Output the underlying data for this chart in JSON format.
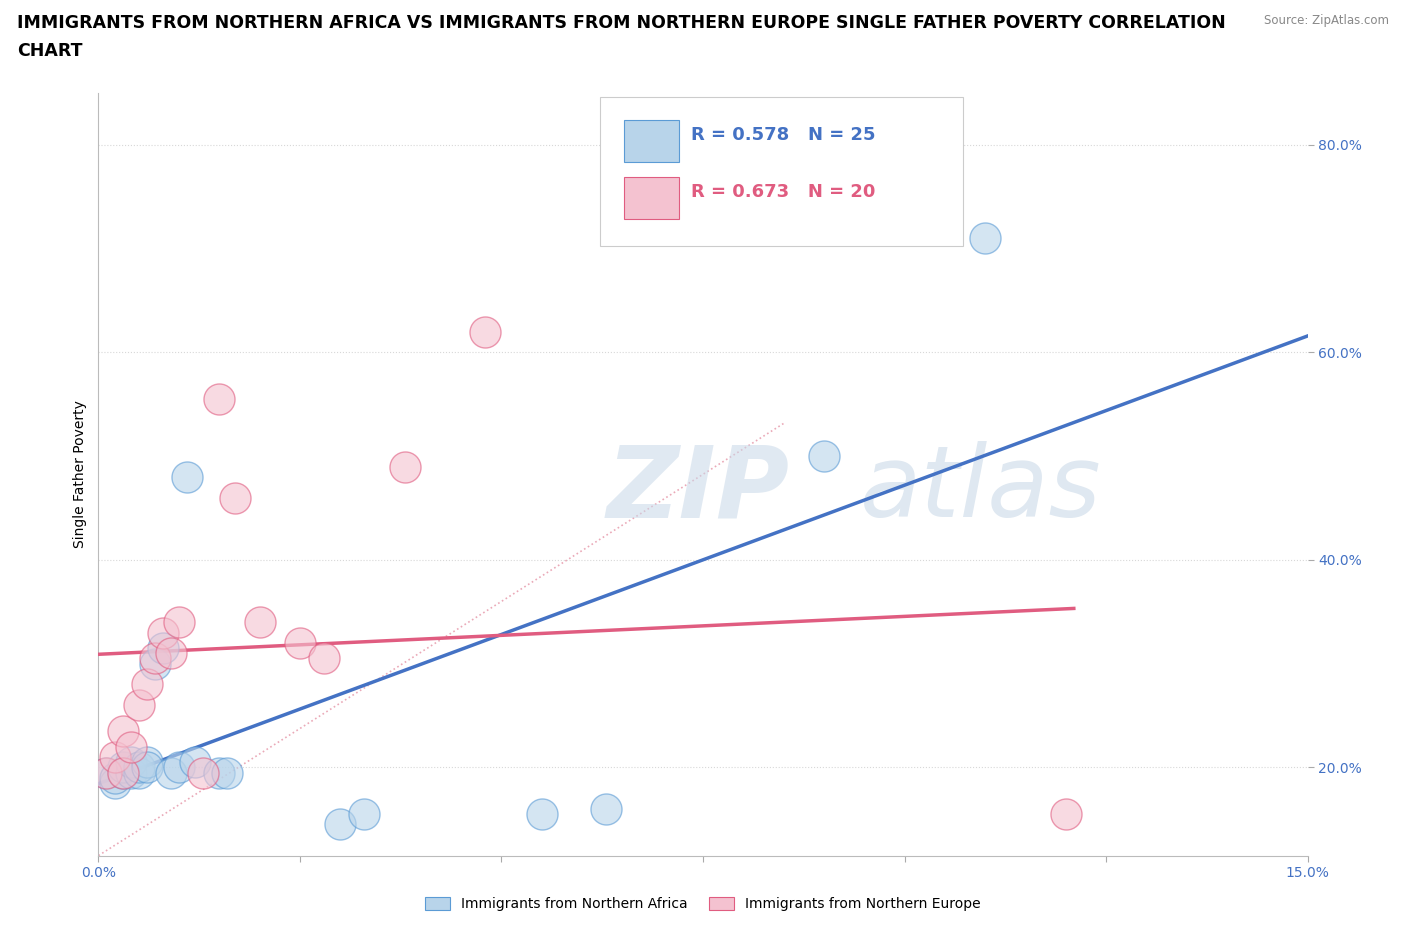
{
  "title_line1": "IMMIGRANTS FROM NORTHERN AFRICA VS IMMIGRANTS FROM NORTHERN EUROPE SINGLE FATHER POVERTY CORRELATION",
  "title_line2": "CHART",
  "source": "Source: ZipAtlas.com",
  "ylabel": "Single Father Poverty",
  "xlim": [
    0.0,
    0.15
  ],
  "ylim": [
    0.115,
    0.85
  ],
  "yticks": [
    0.2,
    0.4,
    0.6,
    0.8
  ],
  "ytick_labels": [
    "20.0%",
    "40.0%",
    "60.0%",
    "80.0%"
  ],
  "xtick_positions": [
    0.0,
    0.025,
    0.05,
    0.075,
    0.1,
    0.125,
    0.15
  ],
  "watermark_zip": "ZIP",
  "watermark_atlas": "atlas",
  "series_blue": {
    "label": "Immigrants from Northern Africa",
    "R": 0.578,
    "N": 25,
    "color": "#b8d4ea",
    "edge_color": "#5b9bd5",
    "x": [
      0.001,
      0.002,
      0.002,
      0.003,
      0.003,
      0.004,
      0.004,
      0.005,
      0.005,
      0.006,
      0.006,
      0.007,
      0.008,
      0.009,
      0.01,
      0.011,
      0.012,
      0.015,
      0.016,
      0.03,
      0.033,
      0.055,
      0.063,
      0.09,
      0.11
    ],
    "y": [
      0.195,
      0.185,
      0.19,
      0.195,
      0.2,
      0.195,
      0.205,
      0.195,
      0.2,
      0.205,
      0.2,
      0.3,
      0.315,
      0.195,
      0.2,
      0.48,
      0.205,
      0.195,
      0.195,
      0.145,
      0.155,
      0.155,
      0.16,
      0.5,
      0.71
    ]
  },
  "series_pink": {
    "label": "Immigrants from Northern Europe",
    "R": 0.673,
    "N": 20,
    "color": "#f4c2d0",
    "edge_color": "#e05c80",
    "x": [
      0.001,
      0.002,
      0.003,
      0.003,
      0.004,
      0.005,
      0.006,
      0.007,
      0.008,
      0.009,
      0.01,
      0.013,
      0.015,
      0.017,
      0.02,
      0.025,
      0.028,
      0.038,
      0.048,
      0.12
    ],
    "y": [
      0.195,
      0.21,
      0.195,
      0.235,
      0.22,
      0.26,
      0.28,
      0.305,
      0.33,
      0.31,
      0.34,
      0.195,
      0.555,
      0.46,
      0.34,
      0.32,
      0.305,
      0.49,
      0.62,
      0.155
    ]
  },
  "blue_line_color": "#4472c4",
  "pink_line_color": "#e05c80",
  "diag_line_color": "#e8a0b0",
  "R_N_color": "#4472c4",
  "grid_color": "#d8d8d8",
  "background_color": "#ffffff",
  "title_fontsize": 12.5,
  "axis_label_fontsize": 10,
  "tick_fontsize": 10,
  "legend_fontsize": 13
}
